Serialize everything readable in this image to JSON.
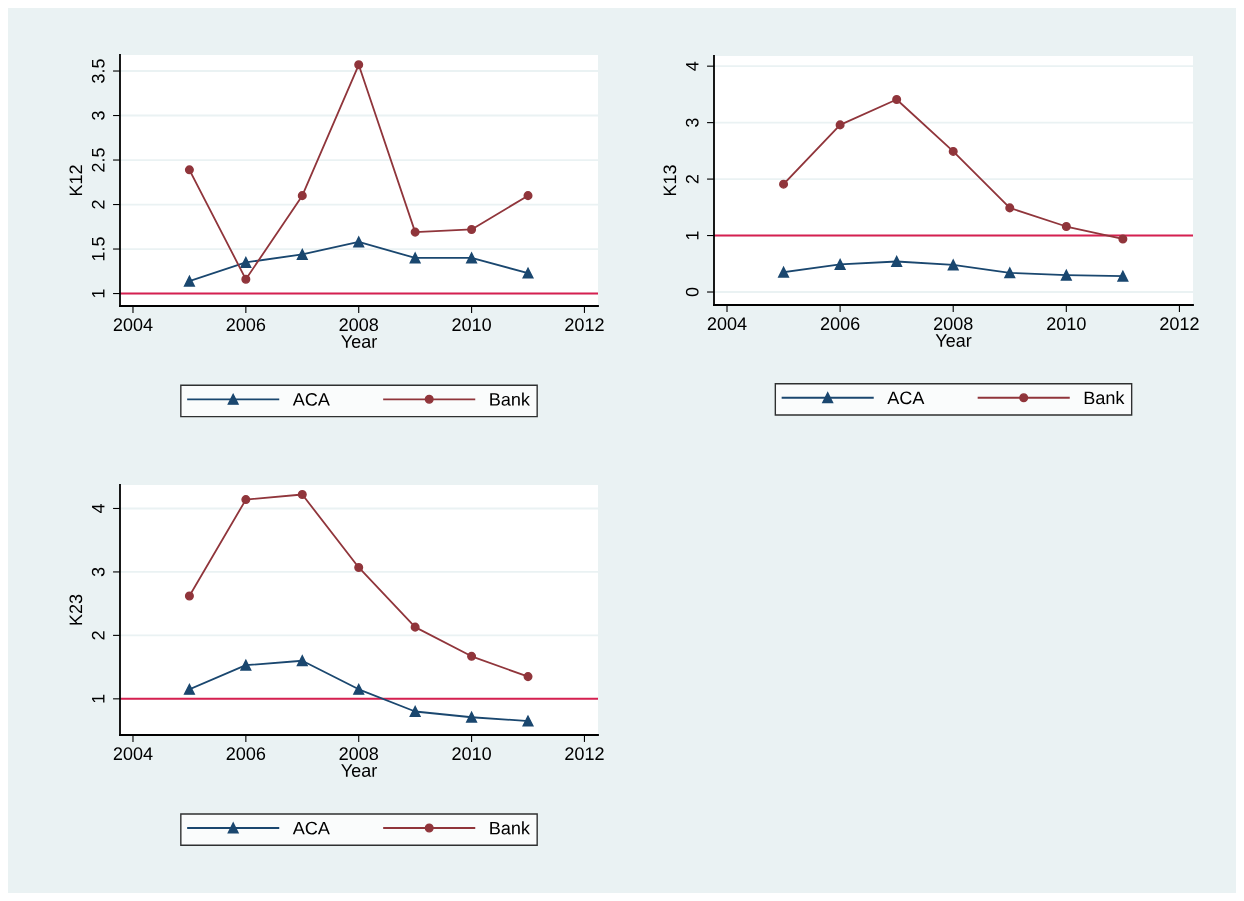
{
  "chart_data": [
    {
      "type": "line",
      "xlabel": "Year",
      "ylabel": "K12",
      "x": [
        2005,
        2006,
        2007,
        2008,
        2009,
        2010,
        2011
      ],
      "xlim": [
        2003.77,
        2012.24
      ],
      "xticks": [
        2004,
        2006,
        2008,
        2010,
        2012
      ],
      "ylim": [
        0.86,
        3.68
      ],
      "yticks": [
        1,
        1.5,
        2,
        2.5,
        3,
        3.5
      ],
      "grid": "y",
      "legend": "bottom",
      "series": [
        {
          "name": "ACA",
          "color": "#1a476f",
          "marker": "triangle",
          "values": [
            1.14,
            1.35,
            1.44,
            1.58,
            1.4,
            1.4,
            1.23
          ]
        },
        {
          "name": "Bank",
          "color": "#90353b",
          "marker": "circle",
          "values": [
            2.39,
            1.16,
            2.1,
            3.57,
            1.69,
            1.72,
            2.1
          ]
        }
      ],
      "ref_lines": [
        {
          "axis": "y",
          "value": 1,
          "color": "#d62050"
        }
      ]
    },
    {
      "type": "line",
      "xlabel": "Year",
      "ylabel": "K13",
      "x": [
        2005,
        2006,
        2007,
        2008,
        2009,
        2010,
        2011
      ],
      "xlim": [
        2003.77,
        2012.24
      ],
      "xticks": [
        2004,
        2006,
        2008,
        2010,
        2012
      ],
      "ylim": [
        -0.23,
        4.18
      ],
      "yticks": [
        0,
        1,
        2,
        3,
        4
      ],
      "grid": "y",
      "legend": "bottom",
      "series": [
        {
          "name": "ACA",
          "color": "#1a476f",
          "marker": "triangle",
          "values": [
            0.35,
            0.49,
            0.54,
            0.48,
            0.34,
            0.3,
            0.28
          ]
        },
        {
          "name": "Bank",
          "color": "#90353b",
          "marker": "circle",
          "values": [
            1.91,
            2.96,
            3.41,
            2.49,
            1.49,
            1.16,
            0.94
          ]
        }
      ],
      "ref_lines": [
        {
          "axis": "y",
          "value": 1,
          "color": "#d62050"
        }
      ]
    },
    {
      "type": "line",
      "xlabel": "Year",
      "ylabel": "K23",
      "x": [
        2005,
        2006,
        2007,
        2008,
        2009,
        2010,
        2011
      ],
      "xlim": [
        2003.77,
        2012.24
      ],
      "xticks": [
        2004,
        2006,
        2008,
        2010,
        2012
      ],
      "ylim": [
        0.43,
        4.37
      ],
      "yticks": [
        1,
        2,
        3,
        4
      ],
      "grid": "y",
      "legend": "bottom",
      "series": [
        {
          "name": "ACA",
          "color": "#1a476f",
          "marker": "triangle",
          "values": [
            1.15,
            1.53,
            1.6,
            1.15,
            0.8,
            0.71,
            0.65
          ]
        },
        {
          "name": "Bank",
          "color": "#90353b",
          "marker": "circle",
          "values": [
            2.62,
            4.14,
            4.22,
            3.07,
            2.13,
            1.67,
            1.35
          ]
        }
      ],
      "ref_lines": [
        {
          "axis": "y",
          "value": 1,
          "color": "#d62050"
        }
      ]
    }
  ]
}
